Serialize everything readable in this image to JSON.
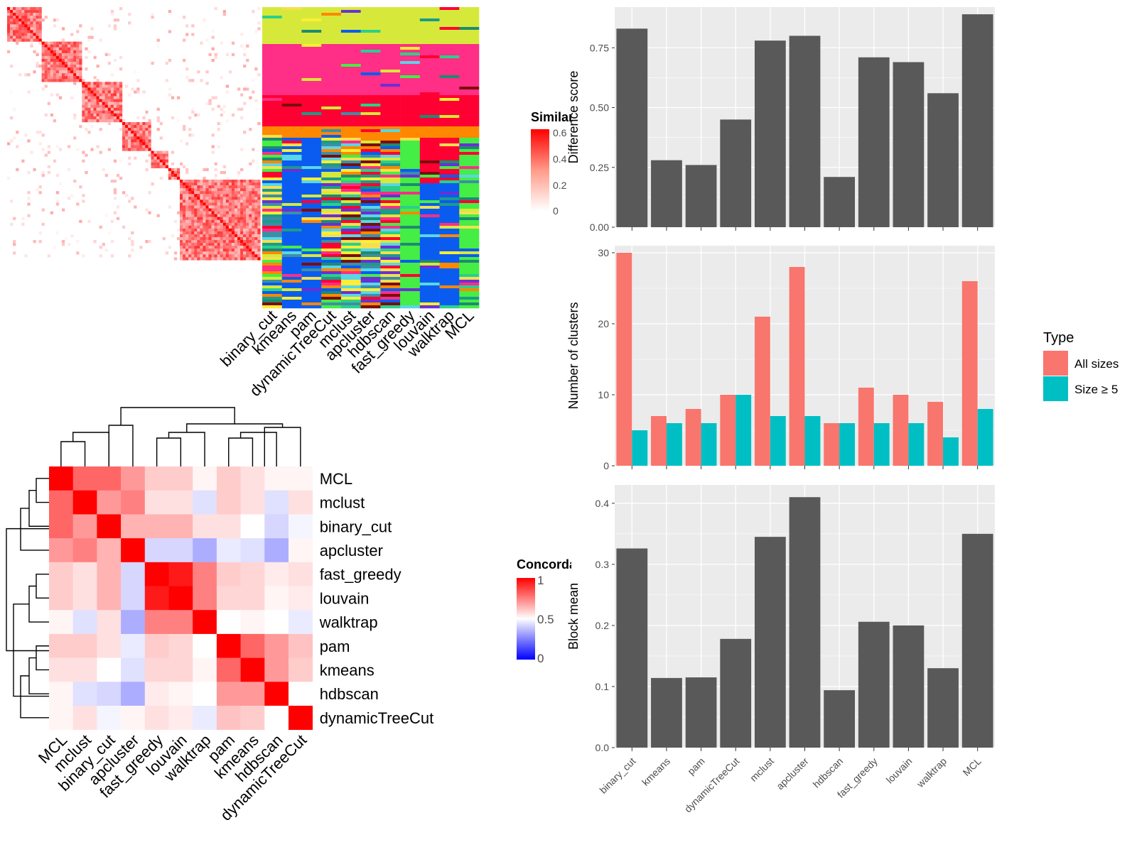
{
  "methods_similarity_order": [
    "binary_cut",
    "kmeans",
    "pam",
    "dynamicTreeCut",
    "mclust",
    "apcluster",
    "hdbscan",
    "fast_greedy",
    "louvain",
    "walktrap",
    "MCL"
  ],
  "similarity_legend": {
    "title": "Similarity",
    "ticks": [
      "0.6",
      "0.4",
      "0.2",
      "0"
    ]
  },
  "concordance_legend": {
    "title": "Concordance",
    "ticks": [
      "1",
      "0.5",
      "0"
    ]
  },
  "colors": {
    "panel_bg": "#ebebeb",
    "bar": "#595959",
    "all_sizes": "#f8766d",
    "size_ge5": "#00bfc4",
    "heat_red": "#ff0000",
    "heat_blue": "#0000ff"
  },
  "chart_data": [
    {
      "type": "heatmap",
      "name": "similarity",
      "xlabel": "",
      "ylabel": "",
      "columns": [
        "binary_cut",
        "kmeans",
        "pam",
        "dynamicTreeCut",
        "mclust",
        "apcluster",
        "hdbscan",
        "fast_greedy",
        "louvain",
        "walktrap",
        "MCL"
      ],
      "color_range": [
        0,
        0.6
      ]
    },
    {
      "type": "heatmap",
      "name": "concordance",
      "rows": [
        "MCL",
        "mclust",
        "binary_cut",
        "apcluster",
        "fast_greedy",
        "louvain",
        "walktrap",
        "pam",
        "kmeans",
        "hdbscan",
        "dynamicTreeCut"
      ],
      "columns": [
        "MCL",
        "mclust",
        "binary_cut",
        "apcluster",
        "fast_greedy",
        "louvain",
        "walktrap",
        "pam",
        "kmeans",
        "hdbscan",
        "dynamicTreeCut"
      ],
      "values": [
        [
          1.0,
          0.8,
          0.8,
          0.7,
          0.6,
          0.6,
          0.52,
          0.6,
          0.56,
          0.52,
          0.52
        ],
        [
          0.8,
          1.0,
          0.7,
          0.75,
          0.56,
          0.56,
          0.44,
          0.6,
          0.56,
          0.44,
          0.56
        ],
        [
          0.8,
          0.7,
          1.0,
          0.65,
          0.65,
          0.65,
          0.56,
          0.56,
          0.5,
          0.42,
          0.48
        ],
        [
          0.7,
          0.75,
          0.65,
          1.0,
          0.42,
          0.42,
          0.34,
          0.46,
          0.44,
          0.34,
          0.52
        ],
        [
          0.6,
          0.56,
          0.65,
          0.42,
          1.0,
          0.95,
          0.75,
          0.6,
          0.58,
          0.54,
          0.56
        ],
        [
          0.6,
          0.56,
          0.65,
          0.42,
          0.95,
          1.0,
          0.75,
          0.58,
          0.58,
          0.52,
          0.54
        ],
        [
          0.52,
          0.44,
          0.56,
          0.34,
          0.75,
          0.75,
          1.0,
          0.5,
          0.52,
          0.5,
          0.46
        ],
        [
          0.6,
          0.6,
          0.56,
          0.46,
          0.6,
          0.58,
          0.5,
          1.0,
          0.8,
          0.7,
          0.62
        ],
        [
          0.56,
          0.56,
          0.5,
          0.44,
          0.58,
          0.58,
          0.52,
          0.8,
          1.0,
          0.7,
          0.6
        ],
        [
          0.52,
          0.44,
          0.42,
          0.34,
          0.54,
          0.52,
          0.5,
          0.7,
          0.7,
          1.0,
          0.5
        ],
        [
          0.52,
          0.56,
          0.48,
          0.52,
          0.56,
          0.54,
          0.46,
          0.62,
          0.6,
          0.5,
          1.0
        ]
      ],
      "color_range": [
        0,
        1
      ]
    },
    {
      "type": "bar",
      "name": "difference",
      "categories": [
        "binary_cut",
        "kmeans",
        "pam",
        "dynamicTreeCut",
        "mclust",
        "apcluster",
        "hdbscan",
        "fast_greedy",
        "louvain",
        "walktrap",
        "MCL"
      ],
      "values": [
        0.83,
        0.28,
        0.26,
        0.45,
        0.78,
        0.8,
        0.21,
        0.71,
        0.69,
        0.56,
        0.89
      ],
      "xlabel": "",
      "ylabel": "Difference score",
      "ylim": [
        0,
        0.92
      ],
      "yticks": [
        "0.00",
        "0.25",
        "0.50",
        "0.75"
      ]
    },
    {
      "type": "bar",
      "name": "clusters",
      "categories": [
        "binary_cut",
        "kmeans",
        "pam",
        "dynamicTreeCut",
        "mclust",
        "apcluster",
        "hdbscan",
        "fast_greedy",
        "louvain",
        "walktrap",
        "MCL"
      ],
      "series": [
        {
          "name": "All sizes",
          "values": [
            30,
            7,
            8,
            10,
            21,
            28,
            6,
            11,
            10,
            9,
            26
          ]
        },
        {
          "name": "Size ≥ 5",
          "values": [
            5,
            6,
            6,
            10,
            7,
            7,
            6,
            6,
            6,
            4,
            8
          ]
        }
      ],
      "xlabel": "",
      "ylabel": "Number of clusters",
      "ylim": [
        0,
        31
      ],
      "yticks": [
        "0",
        "10",
        "20",
        "30"
      ],
      "legend": {
        "title": "Type",
        "placement": "right"
      }
    },
    {
      "type": "bar",
      "name": "blockmean",
      "categories": [
        "binary_cut",
        "kmeans",
        "pam",
        "dynamicTreeCut",
        "mclust",
        "apcluster",
        "hdbscan",
        "fast_greedy",
        "louvain",
        "walktrap",
        "MCL"
      ],
      "values": [
        0.326,
        0.114,
        0.115,
        0.178,
        0.345,
        0.41,
        0.094,
        0.206,
        0.2,
        0.13,
        0.35
      ],
      "xlabel": "",
      "ylabel": "Block mean",
      "ylim": [
        0,
        0.43
      ],
      "yticks": [
        "0.0",
        "0.1",
        "0.2",
        "0.3",
        "0.4"
      ]
    }
  ]
}
